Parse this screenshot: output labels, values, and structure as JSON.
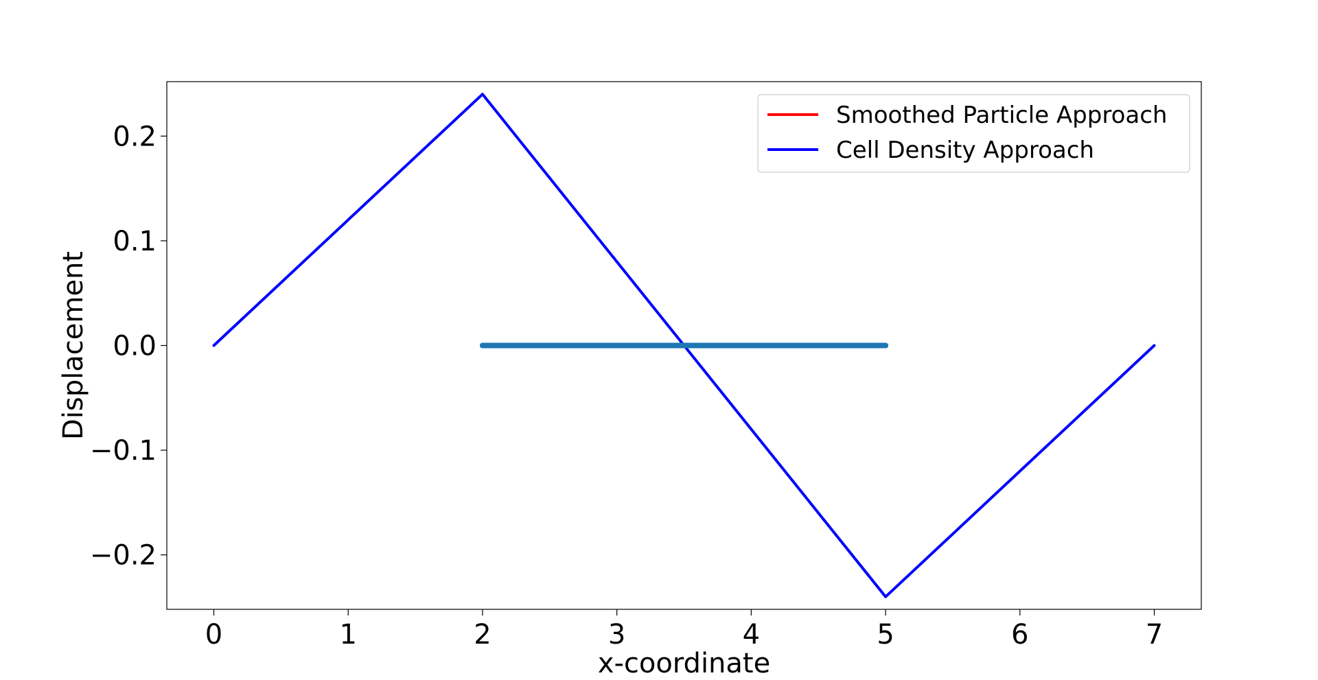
{
  "chart_data": {
    "type": "line",
    "xlabel": "x-coordinate",
    "ylabel": "Displacement",
    "xlim": [
      -0.35,
      7.35
    ],
    "ylim": [
      -0.252,
      0.252
    ],
    "xticks": [
      0,
      1,
      2,
      3,
      4,
      5,
      6,
      7
    ],
    "xtick_labels": [
      "0",
      "1",
      "2",
      "3",
      "4",
      "5",
      "6",
      "7"
    ],
    "yticks": [
      0.2,
      0.1,
      0.0,
      -0.1,
      -0.2
    ],
    "ytick_labels": [
      "0.2",
      "0.1",
      "0.0",
      "−0.1",
      "−0.2"
    ],
    "grid": false,
    "legend_position": "top-right",
    "series": [
      {
        "name": "Smoothed Particle Approach",
        "color": "#ff0000",
        "x": [],
        "y": []
      },
      {
        "name": "Cell Density Approach",
        "color": "#0000ff",
        "x": [
          0,
          2,
          5,
          7
        ],
        "y": [
          0.0,
          0.24,
          -0.24,
          0.0
        ]
      },
      {
        "color": "#1f77b4",
        "x": [
          2,
          5
        ],
        "y": [
          0.0,
          0.0
        ]
      }
    ]
  }
}
